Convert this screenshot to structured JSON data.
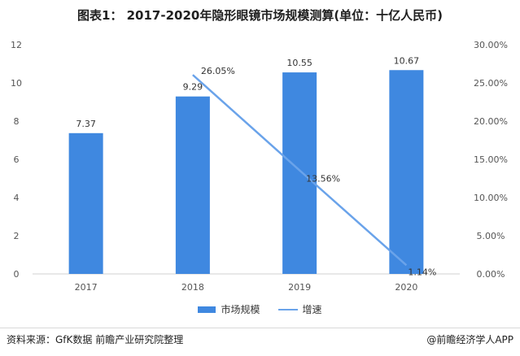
{
  "chart_data": {
    "type": "bar+line",
    "title": "图表1： 2017-2020年隐形眼镜市场规模测算(单位：十亿人民币)",
    "categories": [
      "2017",
      "2018",
      "2019",
      "2020"
    ],
    "series": [
      {
        "name": "市场规模",
        "type": "bar",
        "axis": "left",
        "values": [
          7.37,
          9.29,
          10.55,
          10.67
        ],
        "labels": [
          "7.37",
          "9.29",
          "10.55",
          "10.67"
        ],
        "color": "#3f88e0"
      },
      {
        "name": "增速",
        "type": "line",
        "axis": "right",
        "values": [
          null,
          26.05,
          13.56,
          1.14
        ],
        "labels": [
          "",
          "26.05%",
          "13.56%",
          "1.14%"
        ],
        "color": "#6aa3ea"
      }
    ],
    "y_left": {
      "min": 0,
      "max": 12,
      "ticks": [
        "0",
        "2",
        "4",
        "6",
        "8",
        "10",
        "12"
      ]
    },
    "y_right": {
      "min": 0,
      "max": 30,
      "ticks": [
        "0.00%",
        "5.00%",
        "10.00%",
        "15.00%",
        "20.00%",
        "25.00%",
        "30.00%"
      ]
    },
    "legend_position": "bottom",
    "grid": false
  },
  "legend": {
    "bar_label": "市场规模",
    "line_label": "增速"
  },
  "footer": {
    "source": "资料来源：GfK数据 前瞻产业研究院整理",
    "credit": "@前瞻经济学人APP"
  }
}
